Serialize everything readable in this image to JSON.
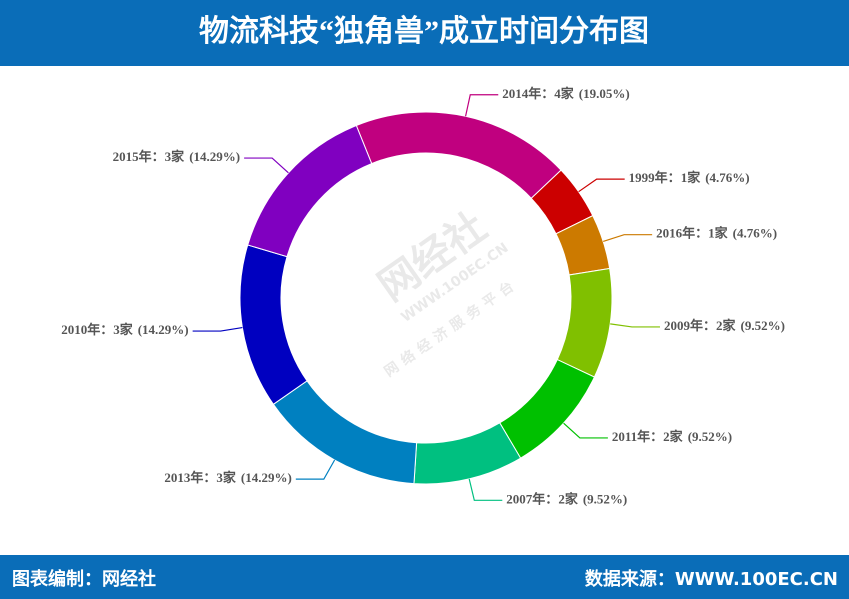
{
  "chart_data": {
    "type": "pie",
    "title": "物流科技“独角兽”成立时间分布图",
    "categories": [
      "2014年：",
      "1999年：",
      "2016年：",
      "2009年：",
      "2011年：",
      "2007年：",
      "2013年：",
      "2010年：",
      "2015年："
    ],
    "values": [
      4,
      1,
      1,
      2,
      2,
      2,
      3,
      3,
      3
    ],
    "value_labels": [
      "4家",
      "1家",
      "1家",
      "2家",
      "2家",
      "2家",
      "3家",
      "3家",
      "3家"
    ],
    "percents": [
      19.05,
      4.76,
      4.76,
      9.52,
      9.52,
      9.52,
      14.29,
      14.29,
      14.29
    ],
    "percent_labels": [
      "(19.05%)",
      "(4.76%)",
      "(4.76%)",
      "(9.52%)",
      "(9.52%)",
      "(9.52%)",
      "(14.29%)",
      "(14.29%)",
      "(14.29%)"
    ],
    "colors": [
      "#c0007f",
      "#cc0000",
      "#cc7a00",
      "#80c000",
      "#00c000",
      "#00c080",
      "#0080c0",
      "#0000c0",
      "#8000c0"
    ],
    "donut": true
  },
  "watermark": {
    "brand": "网经社",
    "url": "WWW.100EC.CN",
    "slogan": "网络经济服务平台"
  },
  "footer": {
    "left": "图表编制：网经社",
    "right": "数据来源：WWW.100EC.CN"
  }
}
